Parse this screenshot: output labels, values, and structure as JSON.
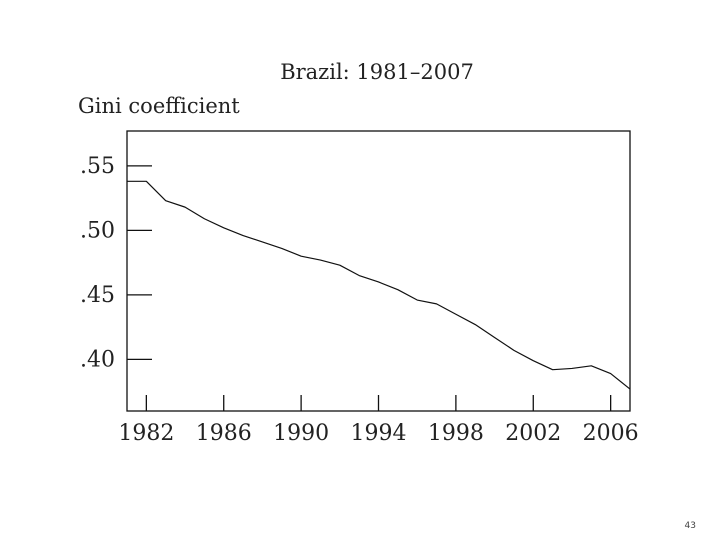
{
  "chart_data": {
    "type": "line",
    "title": "Brazil: 1981–2007",
    "xlabel": "",
    "ylabel": "Gini coefficient",
    "x": [
      1981,
      1982,
      1983,
      1984,
      1985,
      1986,
      1987,
      1988,
      1989,
      1990,
      1991,
      1992,
      1993,
      1994,
      1995,
      1996,
      1997,
      1998,
      1999,
      2000,
      2001,
      2002,
      2003,
      2004,
      2005,
      2006,
      2007
    ],
    "series": [
      {
        "values": [
          0.538,
          0.538,
          0.523,
          0.518,
          0.509,
          0.502,
          0.496,
          0.491,
          0.486,
          0.48,
          0.477,
          0.473,
          0.465,
          0.46,
          0.454,
          0.446,
          0.443,
          0.435,
          0.427,
          0.417,
          0.407,
          0.399,
          0.392,
          0.393,
          0.395,
          0.389,
          0.377
        ]
      }
    ],
    "xticks": [
      1982,
      1986,
      1990,
      1994,
      1998,
      2002,
      2006
    ],
    "xtick_labels": [
      "1982",
      "1986",
      "1990",
      "1994",
      "1998",
      "2002",
      "2006"
    ],
    "yticks": [
      0.55,
      0.5,
      0.45,
      0.4
    ],
    "ytick_labels": [
      ".55",
      ".50",
      ".45",
      ".40"
    ],
    "xlim": [
      1981,
      2007
    ],
    "ylim": [
      0.36,
      0.577
    ],
    "grid": false,
    "legend": "none"
  },
  "page": {
    "number": "43"
  },
  "colors": {
    "line": "#111111",
    "frame": "#111111",
    "text": "#222222"
  }
}
